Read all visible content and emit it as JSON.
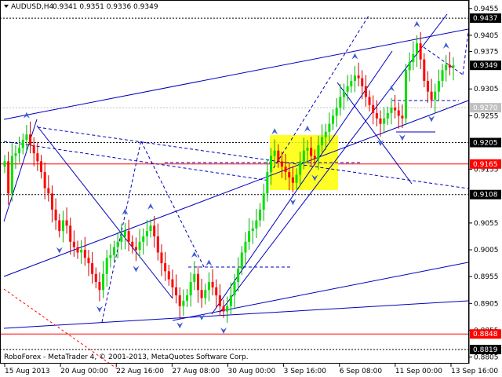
{
  "chart_data": {
    "type": "candlestick",
    "header": {
      "symbol_timeframe": "AUDUSD,H4",
      "ohlc": "0.9341 0.9351 0.9336 0.9349"
    },
    "footer": "RoboForex - MetaTrader 4, © 2001-2013, MetaQuotes Software Corp.",
    "ylim": [
      0.88,
      0.9465
    ],
    "y_ticks": [
      "0.9455",
      "0.9405",
      "0.9375",
      "0.9305",
      "0.9255",
      "0.9155",
      "0.9055",
      "0.9005",
      "0.8955",
      "0.8905",
      "0.8855",
      "0.8805"
    ],
    "x_ticks": [
      "15 Aug 2013",
      "20 Aug 00:00",
      "22 Aug 16:00",
      "27 Aug 08:00",
      "30 Aug 00:00",
      "3 Sep 16:00",
      "6 Sep 08:00",
      "11 Sep 00:00",
      "13 Sep 16:00"
    ],
    "current_price": "0.9349",
    "price_levels": [
      {
        "label": "0.9437",
        "value": 0.9437,
        "color": "#000000",
        "line": "dash"
      },
      {
        "label": "0.9270",
        "value": 0.927,
        "color": "#c0c0c0",
        "line": "dash"
      },
      {
        "label": "0.9205",
        "value": 0.9205,
        "color": "#000000",
        "line": "dash"
      },
      {
        "label": "0.9165",
        "value": 0.9165,
        "color": "#ff0000",
        "line": "solid"
      },
      {
        "label": "0.9108",
        "value": 0.9108,
        "color": "#000000",
        "line": "dash"
      },
      {
        "label": "0.8848",
        "value": 0.8848,
        "color": "#ff0000",
        "line": "solid"
      },
      {
        "label": "0.8819",
        "value": 0.8819,
        "color": "#000000",
        "line": "dash"
      }
    ],
    "close_series": [
      0.917,
      0.911,
      0.918,
      0.9185,
      0.9195,
      0.921,
      0.922,
      0.92,
      0.9185,
      0.917,
      0.915,
      0.912,
      0.911,
      0.908,
      0.906,
      0.904,
      0.906,
      0.905,
      0.902,
      0.901,
      0.9,
      0.9005,
      0.899,
      0.898,
      0.896,
      0.8945,
      0.893,
      0.896,
      0.899,
      0.8995,
      0.901,
      0.902,
      0.903,
      0.904,
      0.902,
      0.901,
      0.9005,
      0.902,
      0.903,
      0.904,
      0.905,
      0.903,
      0.9,
      0.898,
      0.8965,
      0.895,
      0.8935,
      0.892,
      0.89,
      0.891,
      0.892,
      0.8945,
      0.896,
      0.893,
      0.8915,
      0.893,
      0.8945,
      0.8935,
      0.892,
      0.89,
      0.889,
      0.89,
      0.892,
      0.8945,
      0.897,
      0.9,
      0.902,
      0.904,
      0.9045,
      0.906,
      0.908,
      0.911,
      0.915,
      0.918,
      0.919,
      0.917,
      0.916,
      0.915,
      0.914,
      0.913,
      0.9145,
      0.917,
      0.919,
      0.9195,
      0.918,
      0.9175,
      0.92,
      0.9215,
      0.9225,
      0.924,
      0.9255,
      0.927,
      0.929,
      0.93,
      0.931,
      0.932,
      0.933,
      0.9325,
      0.931,
      0.929,
      0.9275,
      0.926,
      0.925,
      0.924,
      0.925,
      0.926,
      0.927,
      0.9265,
      0.9255,
      0.925,
      0.934,
      0.9355,
      0.937,
      0.939,
      0.936,
      0.932,
      0.93,
      0.9285,
      0.93,
      0.932,
      0.934,
      0.935,
      0.9345,
      0.9349
    ]
  }
}
